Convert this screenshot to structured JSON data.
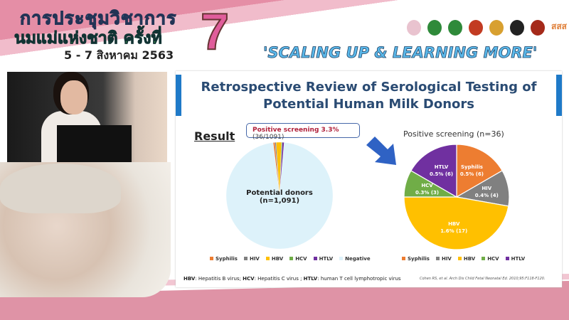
{
  "banner": {
    "line1": "การประชุมวิชาการ",
    "line2": "นมแม่แห่งชาติ ครั้งที่",
    "date": "5 - 7 สิงหาคม 2563",
    "number": "7",
    "slogan": "'SCALING UP & LEARNING MORE'",
    "logos": [
      "logo-1",
      "logo-2",
      "logo-3",
      "logo-4",
      "logo-5",
      "logo-6",
      "logo-7",
      "logo-sss"
    ],
    "logo_text": "สสส"
  },
  "slide": {
    "title_line1": "Retrospective Review of Serological Testing of",
    "title_line2": "Potential Human Milk Donors",
    "result_label": "Result",
    "callout_bold": "Positive screening 3.3%",
    "callout_rest": " (36/1091)",
    "left_pie_label_1": "Potential donors",
    "left_pie_label_2": "(n=1,091)",
    "right_title": "Positive screening (n=36)",
    "footnote": [
      {
        "abbr": "HBV",
        "text": ": Hepatitis B virus; "
      },
      {
        "abbr": "HCV",
        "text": ": Hepatitis C virus ; "
      },
      {
        "abbr": "HTLV",
        "text": ": human T cell lymphotropic virus"
      }
    ],
    "citation": "Cohen RS, et al. Arch Dis Child Fetal Neonatal Ed. 2010;95:F118-F120."
  },
  "chart_data": [
    {
      "type": "pie",
      "title": "",
      "categories": [
        "Syphilis",
        "HIV",
        "HBV",
        "HCV",
        "HTLV",
        "Negative"
      ],
      "values": [
        6,
        4,
        17,
        3,
        6,
        1055
      ],
      "colors": [
        "#ED7D31",
        "#808080",
        "#FFC000",
        "#70AD47",
        "#7030A0",
        "#DDF2FA"
      ],
      "legend": "bottom"
    },
    {
      "type": "pie",
      "title": "Positive screening (n=36)",
      "categories": [
        "Syphilis",
        "HIV",
        "HBV",
        "HCV",
        "HTLV"
      ],
      "values": [
        6,
        4,
        17,
        3,
        6
      ],
      "labels": [
        "0.5% (6)",
        "0.4% (4)",
        "1.6% (17)",
        "0.3% (3)",
        "0.5% (6)"
      ],
      "colors": [
        "#ED7D31",
        "#808080",
        "#FFC000",
        "#70AD47",
        "#7030A0"
      ],
      "legend": "bottom"
    }
  ]
}
